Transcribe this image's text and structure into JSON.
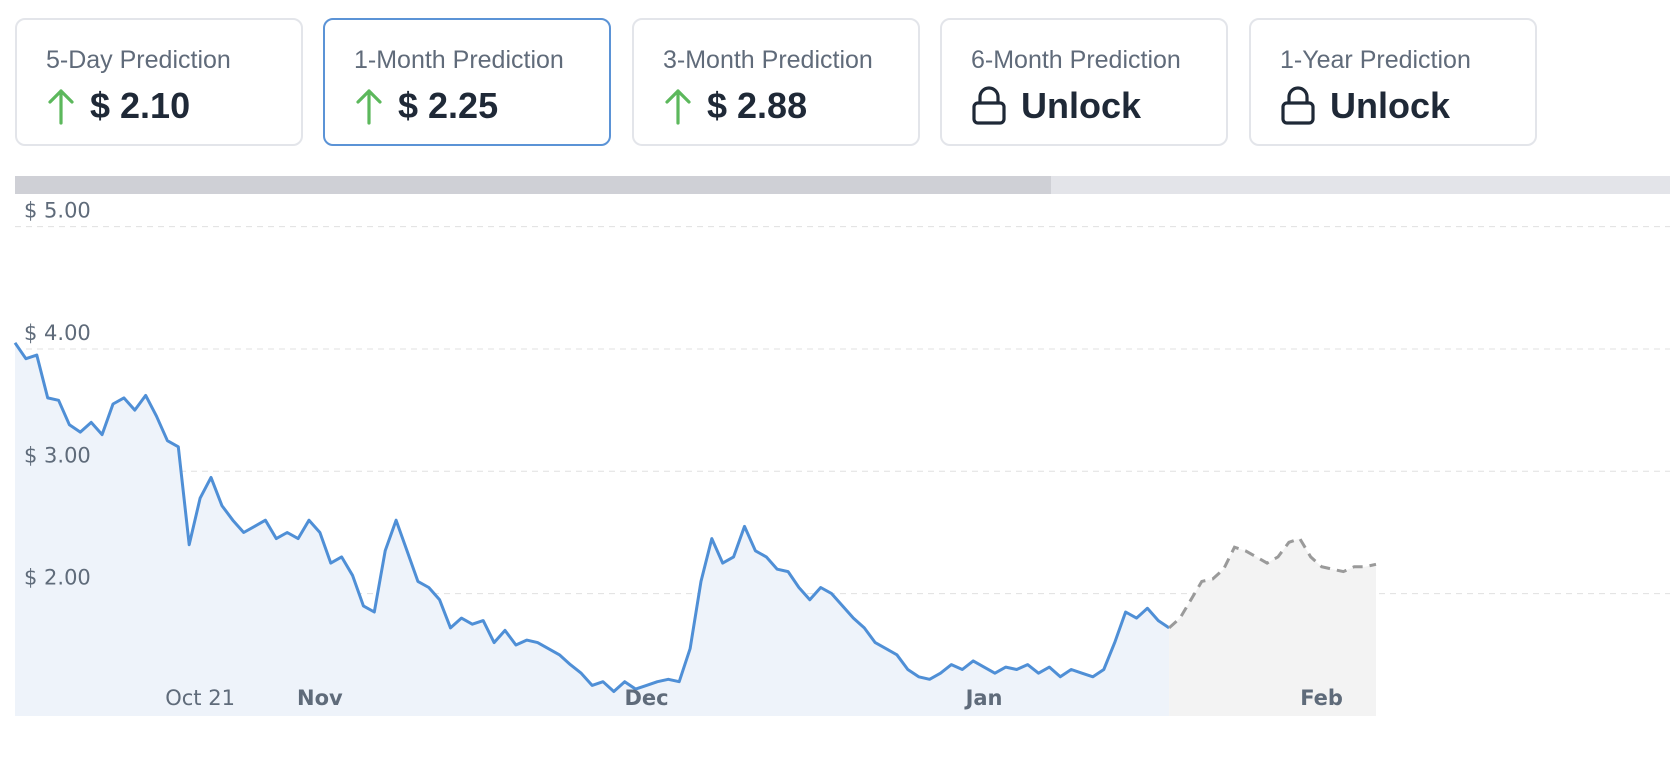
{
  "cards": [
    {
      "title": "5-Day Prediction",
      "value": "$ 2.10",
      "icon": "arrow-up-icon",
      "selected": false
    },
    {
      "title": "1-Month Prediction",
      "value": "$ 2.25",
      "icon": "arrow-up-icon",
      "selected": true
    },
    {
      "title": "3-Month Prediction",
      "value": "$ 2.88",
      "icon": "arrow-up-icon",
      "selected": false
    },
    {
      "title": "6-Month Prediction",
      "value": "Unlock",
      "icon": "lock-icon",
      "selected": false
    },
    {
      "title": "1-Year Prediction",
      "value": "Unlock",
      "icon": "lock-icon",
      "selected": false
    }
  ],
  "range_selector": {
    "selected_fraction": 0.626
  },
  "colors": {
    "accent": "#5b93d6",
    "up": "#5cb85c",
    "history_line": "#4f8fd6",
    "history_fill": "#eef3fa",
    "forecast_line": "#9a9a9a",
    "forecast_fill": "#f3f3f3"
  },
  "chart_data": {
    "type": "line",
    "yticks": [
      {
        "value": 5,
        "label": "$ 5.00"
      },
      {
        "value": 4,
        "label": "$ 4.00"
      },
      {
        "value": 3,
        "label": "$ 3.00"
      },
      {
        "value": 2,
        "label": "$ 2.00"
      }
    ],
    "ylim": [
      1.0,
      5.25
    ],
    "xlim": [
      "2024-10-04",
      "2025-03-05"
    ],
    "xticks": [
      {
        "date": "2024-10-21",
        "label": "Oct 21",
        "bold": false
      },
      {
        "date": "2024-11-01",
        "label": "Nov",
        "bold": true
      },
      {
        "date": "2024-12-01",
        "label": "Dec",
        "bold": true
      },
      {
        "date": "2025-01-01",
        "label": "Jan",
        "bold": true
      },
      {
        "date": "2025-02-01",
        "label": "Feb",
        "bold": true
      }
    ],
    "grid": true,
    "series": [
      {
        "role": "history",
        "points": [
          [
            "2024-10-04",
            4.05
          ],
          [
            "2024-10-05",
            3.92
          ],
          [
            "2024-10-06",
            3.95
          ],
          [
            "2024-10-07",
            3.6
          ],
          [
            "2024-10-08",
            3.58
          ],
          [
            "2024-10-09",
            3.38
          ],
          [
            "2024-10-10",
            3.32
          ],
          [
            "2024-10-11",
            3.4
          ],
          [
            "2024-10-12",
            3.3
          ],
          [
            "2024-10-13",
            3.55
          ],
          [
            "2024-10-14",
            3.6
          ],
          [
            "2024-10-15",
            3.5
          ],
          [
            "2024-10-16",
            3.62
          ],
          [
            "2024-10-17",
            3.45
          ],
          [
            "2024-10-18",
            3.25
          ],
          [
            "2024-10-19",
            3.2
          ],
          [
            "2024-10-20",
            2.4
          ],
          [
            "2024-10-21",
            2.78
          ],
          [
            "2024-10-22",
            2.95
          ],
          [
            "2024-10-23",
            2.72
          ],
          [
            "2024-10-24",
            2.6
          ],
          [
            "2024-10-25",
            2.5
          ],
          [
            "2024-10-26",
            2.55
          ],
          [
            "2024-10-27",
            2.6
          ],
          [
            "2024-10-28",
            2.45
          ],
          [
            "2024-10-29",
            2.5
          ],
          [
            "2024-10-30",
            2.45
          ],
          [
            "2024-10-31",
            2.6
          ],
          [
            "2024-11-01",
            2.5
          ],
          [
            "2024-11-02",
            2.25
          ],
          [
            "2024-11-03",
            2.3
          ],
          [
            "2024-11-04",
            2.15
          ],
          [
            "2024-11-05",
            1.9
          ],
          [
            "2024-11-06",
            1.85
          ],
          [
            "2024-11-07",
            2.35
          ],
          [
            "2024-11-08",
            2.6
          ],
          [
            "2024-11-09",
            2.35
          ],
          [
            "2024-11-10",
            2.1
          ],
          [
            "2024-11-11",
            2.05
          ],
          [
            "2024-11-12",
            1.95
          ],
          [
            "2024-11-13",
            1.72
          ],
          [
            "2024-11-14",
            1.8
          ],
          [
            "2024-11-15",
            1.75
          ],
          [
            "2024-11-16",
            1.78
          ],
          [
            "2024-11-17",
            1.6
          ],
          [
            "2024-11-18",
            1.7
          ],
          [
            "2024-11-19",
            1.58
          ],
          [
            "2024-11-20",
            1.62
          ],
          [
            "2024-11-21",
            1.6
          ],
          [
            "2024-11-22",
            1.55
          ],
          [
            "2024-11-23",
            1.5
          ],
          [
            "2024-11-24",
            1.42
          ],
          [
            "2024-11-25",
            1.35
          ],
          [
            "2024-11-26",
            1.25
          ],
          [
            "2024-11-27",
            1.28
          ],
          [
            "2024-11-28",
            1.2
          ],
          [
            "2024-11-29",
            1.28
          ],
          [
            "2024-11-30",
            1.22
          ],
          [
            "2024-12-01",
            1.25
          ],
          [
            "2024-12-02",
            1.28
          ],
          [
            "2024-12-03",
            1.3
          ],
          [
            "2024-12-04",
            1.28
          ],
          [
            "2024-12-05",
            1.55
          ],
          [
            "2024-12-06",
            2.1
          ],
          [
            "2024-12-07",
            2.45
          ],
          [
            "2024-12-08",
            2.25
          ],
          [
            "2024-12-09",
            2.3
          ],
          [
            "2024-12-10",
            2.55
          ],
          [
            "2024-12-11",
            2.35
          ],
          [
            "2024-12-12",
            2.3
          ],
          [
            "2024-12-13",
            2.2
          ],
          [
            "2024-12-14",
            2.18
          ],
          [
            "2024-12-15",
            2.05
          ],
          [
            "2024-12-16",
            1.95
          ],
          [
            "2024-12-17",
            2.05
          ],
          [
            "2024-12-18",
            2.0
          ],
          [
            "2024-12-19",
            1.9
          ],
          [
            "2024-12-20",
            1.8
          ],
          [
            "2024-12-21",
            1.72
          ],
          [
            "2024-12-22",
            1.6
          ],
          [
            "2024-12-23",
            1.55
          ],
          [
            "2024-12-24",
            1.5
          ],
          [
            "2024-12-25",
            1.38
          ],
          [
            "2024-12-26",
            1.32
          ],
          [
            "2024-12-27",
            1.3
          ],
          [
            "2024-12-28",
            1.35
          ],
          [
            "2024-12-29",
            1.42
          ],
          [
            "2024-12-30",
            1.38
          ],
          [
            "2024-12-31",
            1.45
          ],
          [
            "2025-01-01",
            1.4
          ],
          [
            "2025-01-02",
            1.35
          ],
          [
            "2025-01-03",
            1.4
          ],
          [
            "2025-01-04",
            1.38
          ],
          [
            "2025-01-05",
            1.42
          ],
          [
            "2025-01-06",
            1.35
          ],
          [
            "2025-01-07",
            1.4
          ],
          [
            "2025-01-08",
            1.32
          ],
          [
            "2025-01-09",
            1.38
          ],
          [
            "2025-01-10",
            1.35
          ],
          [
            "2025-01-11",
            1.32
          ],
          [
            "2025-01-12",
            1.38
          ],
          [
            "2025-01-13",
            1.6
          ],
          [
            "2025-01-14",
            1.85
          ],
          [
            "2025-01-15",
            1.8
          ],
          [
            "2025-01-16",
            1.88
          ],
          [
            "2025-01-17",
            1.78
          ],
          [
            "2025-01-18",
            1.72
          ]
        ]
      },
      {
        "role": "forecast",
        "points": [
          [
            "2025-01-18",
            1.72
          ],
          [
            "2025-01-19",
            1.8
          ],
          [
            "2025-01-20",
            1.95
          ],
          [
            "2025-01-21",
            2.1
          ],
          [
            "2025-01-22",
            2.12
          ],
          [
            "2025-01-23",
            2.2
          ],
          [
            "2025-01-24",
            2.38
          ],
          [
            "2025-01-25",
            2.35
          ],
          [
            "2025-01-26",
            2.3
          ],
          [
            "2025-01-27",
            2.25
          ],
          [
            "2025-01-28",
            2.3
          ],
          [
            "2025-01-29",
            2.42
          ],
          [
            "2025-01-30",
            2.45
          ],
          [
            "2025-01-31",
            2.3
          ],
          [
            "2025-02-01",
            2.22
          ],
          [
            "2025-02-02",
            2.2
          ],
          [
            "2025-02-03",
            2.18
          ],
          [
            "2025-02-04",
            2.22
          ],
          [
            "2025-02-05",
            2.22
          ],
          [
            "2025-02-06",
            2.24
          ]
        ]
      }
    ]
  }
}
